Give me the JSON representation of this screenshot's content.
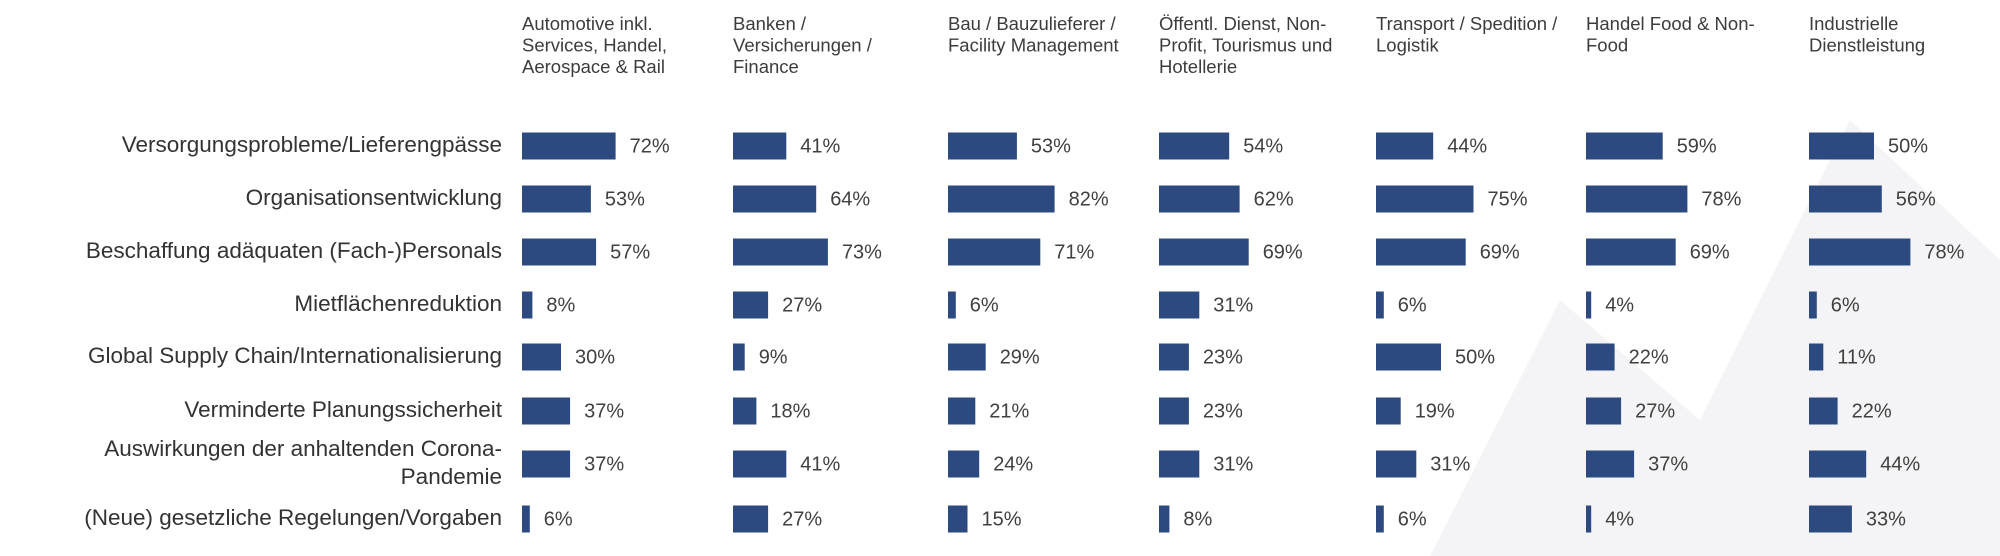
{
  "chart_data": {
    "type": "bar",
    "orientation": "horizontal",
    "layout": "small-multiples",
    "value_unit": "%",
    "xlim": [
      0,
      100
    ],
    "bar_color": "#2c4a80",
    "categories": [
      [
        "Versorgungsprobleme/Lieferengpässe"
      ],
      [
        "Organisationsentwicklung"
      ],
      [
        "Beschaffung adäquaten (Fach-)Personals"
      ],
      [
        "Mietflächenreduktion"
      ],
      [
        "Global Supply Chain/Internationalisierung"
      ],
      [
        "Verminderte Planungssicherheit"
      ],
      [
        "Auswirkungen der anhaltenden Corona-",
        "Pandemie"
      ],
      [
        "(Neue) gesetzliche Regelungen/Vorgaben"
      ]
    ],
    "series": [
      {
        "name": [
          "Automotive inkl.",
          "Services, Handel,",
          "Aerospace & Rail"
        ],
        "values": [
          72,
          53,
          57,
          8,
          30,
          37,
          37,
          6
        ]
      },
      {
        "name": [
          "Banken /",
          "Versicherungen /",
          "Finance"
        ],
        "values": [
          41,
          64,
          73,
          27,
          9,
          18,
          41,
          27
        ]
      },
      {
        "name": [
          "Bau / Bauzulieferer /",
          "Facility Management"
        ],
        "values": [
          53,
          82,
          71,
          6,
          29,
          21,
          24,
          15
        ]
      },
      {
        "name": [
          "Öffentl. Dienst, Non-",
          "Profit, Tourismus und",
          "Hotellerie"
        ],
        "values": [
          54,
          62,
          69,
          31,
          23,
          23,
          31,
          8
        ]
      },
      {
        "name": [
          "Transport / Spedition /",
          "Logistik"
        ],
        "values": [
          44,
          75,
          69,
          6,
          50,
          19,
          31,
          6
        ]
      },
      {
        "name": [
          "Handel Food & Non-",
          "Food"
        ],
        "values": [
          59,
          78,
          69,
          4,
          22,
          27,
          37,
          4
        ]
      },
      {
        "name": [
          "Industrielle",
          "Dienstleistung"
        ],
        "values": [
          50,
          56,
          78,
          6,
          11,
          22,
          44,
          33
        ]
      }
    ]
  }
}
